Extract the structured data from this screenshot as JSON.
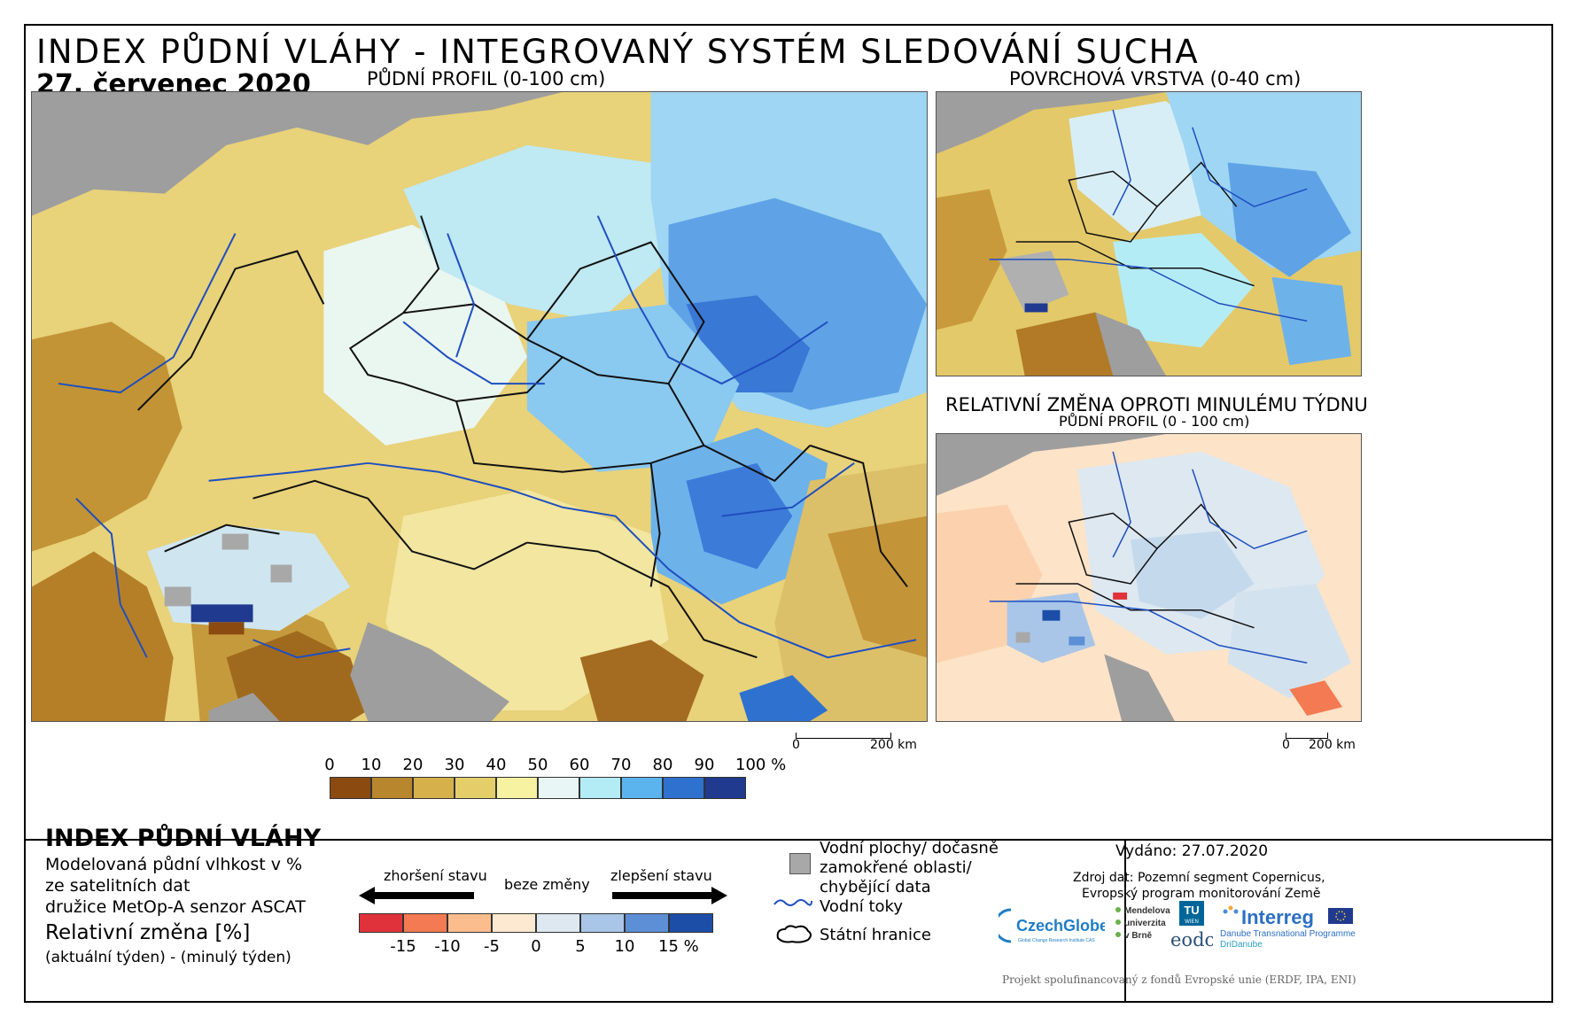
{
  "header": {
    "title": "INDEX PŮDNÍ VLÁHY - INTEGROVANÝ SYSTÉM SLEDOVÁNÍ SUCHA",
    "date": "27. červenec 2020"
  },
  "maps": {
    "main_label": "PŮDNÍ PROFIL (0-100 cm)",
    "top_right_label": "POVRCHOVÁ VRSTVA (0-40 cm)",
    "bottom_right_label_1": "RELATIVNÍ ZMĚNA OPROTI MINULÉMU TÝDNU",
    "bottom_right_label_2": "PŮDNÍ PROFIL (0 - 100 cm)",
    "scale_main": {
      "zero": "0",
      "end": "200 km"
    },
    "scale_small": {
      "zero": "0",
      "end": "200 km"
    }
  },
  "legend": {
    "title": "INDEX PŮDNÍ VLÁHY",
    "desc_1": "Modelovaná půdní vlhkost v %",
    "desc_2": "ze satelitních dat",
    "desc_3": "družice MetOp-A senzor ASCAT",
    "change_title": "Relativní změna [%]",
    "change_desc": "(aktuální týden) - (minulý týden)",
    "index_scale": {
      "labels": [
        "0",
        "10",
        "20",
        "30",
        "40",
        "50",
        "60",
        "70",
        "80",
        "90",
        "100 %"
      ],
      "colors": [
        "#8b4a10",
        "#b8862c",
        "#d6b04a",
        "#e4ce6a",
        "#f7f2a2",
        "#e8f7f6",
        "#b4ecf6",
        "#5cb4ef",
        "#2e71cf",
        "#1f3a8e"
      ]
    },
    "change_arrows": {
      "worse": "zhoršení stavu",
      "nochange": "beze změny",
      "better": "zlepšení stavu"
    },
    "change_scale": {
      "labels": [
        "-15",
        "-10",
        "-5",
        "0",
        "5",
        "10",
        "15 %"
      ],
      "colors": [
        "#e0323a",
        "#f37a52",
        "#fbbd8d",
        "#fde9d2",
        "#dde8f1",
        "#a9c6e8",
        "#5d8fd6",
        "#1c4ea8"
      ]
    },
    "water_bodies": "Vodní plochy/ dočasně zamokřené oblasti/ chybějící data",
    "water_bodies_1": "Vodní plochy/ dočasně",
    "water_bodies_2": "zamokřené oblasti/",
    "water_bodies_3": "chybějící data",
    "rivers": "Vodní toky",
    "borders": "Státní hranice"
  },
  "info": {
    "issued": "Vydáno: 27.07.2020",
    "source_1": "Zdroj dat: Pozemní segment Copernicus,",
    "source_2": "Evropský program monitorování Země",
    "funding": "Projekt spolufinancovaný z fondů Evropské unie (ERDF, IPA, ENI)"
  },
  "logos": {
    "czechglobe": "CzechGlobe",
    "czechglobe_sub": "Global Change Research Institute CAS",
    "mendel_1": "Mendelova",
    "mendel_2": "univerzita",
    "mendel_3": "v Brně",
    "tu": "TU",
    "tu_sub": "WIEN",
    "eodc": "eodc",
    "interreg": "Interreg",
    "interreg_sub_1": "Danube Transnational Programme",
    "interreg_sub_2": "DriDanube"
  },
  "colors": {
    "sea": "#9e9e9e",
    "river": "#1f4fbf",
    "border": "#111111"
  }
}
